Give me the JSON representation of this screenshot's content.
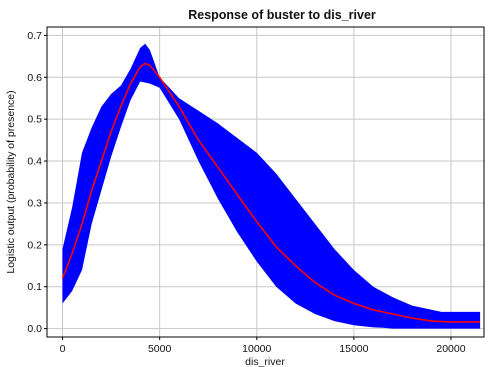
{
  "chart_data": {
    "type": "area",
    "title": "Response of buster to dis_river",
    "xlabel": "dis_river",
    "ylabel": "Logistic output (probability of presence)",
    "xlim": [
      -800,
      21700
    ],
    "ylim": [
      -0.02,
      0.72
    ],
    "xticks": [
      0,
      5000,
      10000,
      15000,
      20000
    ],
    "yticks": [
      0.0,
      0.1,
      0.2,
      0.3,
      0.4,
      0.5,
      0.6,
      0.7
    ],
    "grid": true,
    "colors": {
      "band": "#0000ff",
      "line": "#ff0000",
      "grid": "#c8c8c8",
      "frame": "#000000"
    },
    "series": [
      {
        "role": "mean",
        "x": [
          0,
          500,
          1000,
          1500,
          2000,
          2500,
          3000,
          3500,
          4000,
          4250,
          4500,
          5000,
          6000,
          7000,
          8000,
          9000,
          10000,
          11000,
          12000,
          13000,
          14000,
          15000,
          16000,
          17000,
          18000,
          19000,
          20000,
          21500
        ],
        "values": [
          0.12,
          0.18,
          0.25,
          0.33,
          0.4,
          0.47,
          0.53,
          0.585,
          0.625,
          0.633,
          0.628,
          0.6,
          0.53,
          0.45,
          0.385,
          0.32,
          0.255,
          0.195,
          0.15,
          0.11,
          0.08,
          0.06,
          0.045,
          0.035,
          0.025,
          0.018,
          0.016,
          0.016
        ]
      },
      {
        "role": "upper",
        "x": [
          0,
          500,
          1000,
          1500,
          2000,
          2500,
          3000,
          3500,
          4000,
          4250,
          4500,
          5000,
          6000,
          7000,
          8000,
          9000,
          10000,
          11000,
          12000,
          13000,
          14000,
          15000,
          16000,
          17000,
          18000,
          19000,
          19500,
          21500
        ],
        "values": [
          0.19,
          0.29,
          0.42,
          0.48,
          0.53,
          0.56,
          0.58,
          0.62,
          0.67,
          0.68,
          0.665,
          0.6,
          0.55,
          0.52,
          0.49,
          0.455,
          0.42,
          0.37,
          0.31,
          0.25,
          0.19,
          0.14,
          0.1,
          0.075,
          0.055,
          0.045,
          0.04,
          0.04
        ]
      },
      {
        "role": "lower",
        "x": [
          0,
          500,
          1000,
          1500,
          2000,
          2500,
          3000,
          3500,
          4000,
          4500,
          5000,
          6000,
          7000,
          8000,
          9000,
          10000,
          11000,
          12000,
          13000,
          14000,
          15000,
          16000,
          16500,
          17000,
          18000,
          19000,
          20000,
          21500
        ],
        "values": [
          0.06,
          0.09,
          0.14,
          0.25,
          0.33,
          0.41,
          0.48,
          0.545,
          0.59,
          0.585,
          0.575,
          0.5,
          0.4,
          0.31,
          0.23,
          0.16,
          0.1,
          0.06,
          0.035,
          0.018,
          0.008,
          0.003,
          0.002,
          0.0,
          0.0,
          0.0,
          0.0,
          0.0
        ]
      }
    ]
  }
}
